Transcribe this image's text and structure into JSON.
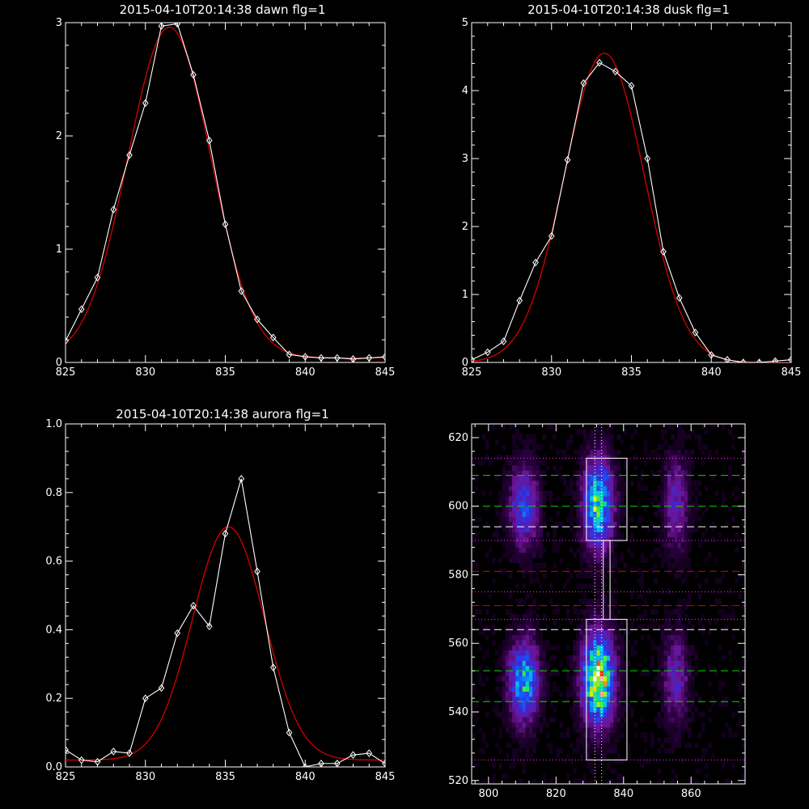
{
  "colors": {
    "background": "#000000",
    "axis": "#ffffff",
    "data_line": "#ffffff",
    "fit_line": "#d40000",
    "green_guide": "#00dd00",
    "red_guide": "#dd0000",
    "pink_guide": "#ff33ff"
  },
  "chart_data": [
    {
      "type": "line",
      "title": "2015-04-10T20:14:38 dawn flg=1",
      "xlim": [
        825,
        845
      ],
      "ylim": [
        0,
        3
      ],
      "xticks": [
        "825",
        "830",
        "835",
        "840",
        "845"
      ],
      "yticks": [
        "0",
        "1",
        "2",
        "3"
      ],
      "series": [
        {
          "style": "data",
          "x": [
            825,
            826,
            827,
            828,
            829,
            830,
            831,
            832,
            833,
            834,
            835,
            836,
            837,
            838,
            839,
            840,
            841,
            842,
            843,
            844,
            845
          ],
          "y": [
            0.19,
            0.47,
            0.75,
            1.35,
            1.83,
            2.29,
            2.97,
            2.99,
            2.54,
            1.96,
            1.22,
            0.63,
            0.38,
            0.22,
            0.07,
            0.05,
            0.04,
            0.04,
            0.03,
            0.04,
            0.05
          ]
        },
        {
          "style": "fit",
          "gaussian": {
            "amplitude": 2.92,
            "center": 831.5,
            "sigma": 2.6,
            "baseline": 0.04
          }
        }
      ]
    },
    {
      "type": "line",
      "title": "2015-04-10T20:14:38 dusk flg=1",
      "xlim": [
        825,
        845
      ],
      "ylim": [
        0,
        5
      ],
      "xticks": [
        "825",
        "830",
        "835",
        "840",
        "845"
      ],
      "yticks": [
        "0",
        "1",
        "2",
        "3",
        "4",
        "5"
      ],
      "series": [
        {
          "style": "data",
          "x": [
            825,
            826,
            827,
            828,
            829,
            830,
            831,
            832,
            833,
            834,
            835,
            836,
            837,
            838,
            839,
            840,
            841,
            842,
            843,
            844,
            845
          ],
          "y": [
            0.04,
            0.15,
            0.31,
            0.91,
            1.47,
            1.86,
            2.98,
            4.11,
            4.41,
            4.28,
            4.07,
            3.0,
            1.63,
            0.95,
            0.44,
            0.11,
            0.04,
            0.0,
            0.0,
            0.02,
            0.04
          ]
        },
        {
          "style": "fit",
          "gaussian": {
            "amplitude": 4.55,
            "center": 833.3,
            "sigma": 2.5,
            "baseline": 0.0
          }
        }
      ]
    },
    {
      "type": "line",
      "title": "2015-04-10T20:14:38 aurora flg=1",
      "xlim": [
        825,
        845
      ],
      "ylim": [
        0,
        1.0
      ],
      "xticks": [
        "825",
        "830",
        "835",
        "840",
        "845"
      ],
      "yticks": [
        "0.0",
        "0.2",
        "0.4",
        "0.6",
        "0.8",
        "1.0"
      ],
      "series": [
        {
          "style": "data",
          "x": [
            825,
            826,
            827,
            828,
            829,
            830,
            831,
            832,
            833,
            834,
            835,
            836,
            837,
            838,
            839,
            840,
            841,
            842,
            843,
            844,
            845
          ],
          "y": [
            0.05,
            0.02,
            0.015,
            0.045,
            0.04,
            0.2,
            0.23,
            0.39,
            0.47,
            0.41,
            0.68,
            0.84,
            0.57,
            0.29,
            0.1,
            0.0,
            0.01,
            0.01,
            0.035,
            0.04,
            0.01
          ]
        },
        {
          "style": "fit",
          "gaussian": {
            "amplitude": 0.68,
            "center": 835.2,
            "sigma": 2.25,
            "baseline": 0.02
          }
        }
      ]
    },
    {
      "type": "heatmap",
      "xlim": [
        795,
        876
      ],
      "ylim": [
        519,
        624
      ],
      "xticks": [
        "800",
        "820",
        "840",
        "860"
      ],
      "yticks": [
        "520",
        "540",
        "560",
        "580",
        "600",
        "620"
      ],
      "emission_columns_x": [
        810.5,
        832.5,
        855.5
      ],
      "blobs": [
        {
          "x": 810.5,
          "y": 600,
          "sx": 3.0,
          "sy": 8,
          "intensity": 0.42
        },
        {
          "x": 810.5,
          "y": 549,
          "sx": 3.0,
          "sy": 8,
          "intensity": 0.62
        },
        {
          "x": 832.5,
          "y": 601,
          "sx": 3.0,
          "sy": 9,
          "intensity": 0.7
        },
        {
          "x": 832.5,
          "y": 550,
          "sx": 3.2,
          "sy": 9,
          "intensity": 0.92
        },
        {
          "x": 855.5,
          "y": 601,
          "sx": 2.5,
          "sy": 9,
          "intensity": 0.3
        },
        {
          "x": 855.5,
          "y": 550,
          "sx": 2.5,
          "sy": 9,
          "intensity": 0.3
        }
      ],
      "boxes": [
        {
          "x0": 829,
          "x1": 841,
          "y0": 590,
          "y1": 614
        },
        {
          "x0": 829,
          "x1": 841,
          "y0": 526,
          "y1": 567
        },
        {
          "x0": 834,
          "x1": 836,
          "y0": 567,
          "y1": 590
        }
      ],
      "vertical_dotted_x": [
        831.5,
        833.5
      ],
      "horizontal_lines": [
        {
          "y": 614,
          "style": "dotted",
          "color": "#ff33ff"
        },
        {
          "y": 609,
          "style": "dashed",
          "color": "#00dd00"
        },
        {
          "y": 600,
          "style": "dashed",
          "color": "#00dd00"
        },
        {
          "y": 594,
          "style": "dashed",
          "color": "#ffffff"
        },
        {
          "y": 590,
          "style": "dotted",
          "color": "#ff33ff"
        },
        {
          "y": 581,
          "style": "dashed",
          "color": "#dd0000"
        },
        {
          "y": 575,
          "style": "dotted",
          "color": "#ff33ff"
        },
        {
          "y": 571,
          "style": "dashed",
          "color": "#dd0000"
        },
        {
          "y": 567,
          "style": "dotted",
          "color": "#ff33ff"
        },
        {
          "y": 564,
          "style": "dashed",
          "color": "#ffffff"
        },
        {
          "y": 552,
          "style": "dashed",
          "color": "#00dd00"
        },
        {
          "y": 543,
          "style": "dashed",
          "color": "#00dd00"
        },
        {
          "y": 526,
          "style": "dotted",
          "color": "#ff33ff"
        }
      ]
    }
  ]
}
